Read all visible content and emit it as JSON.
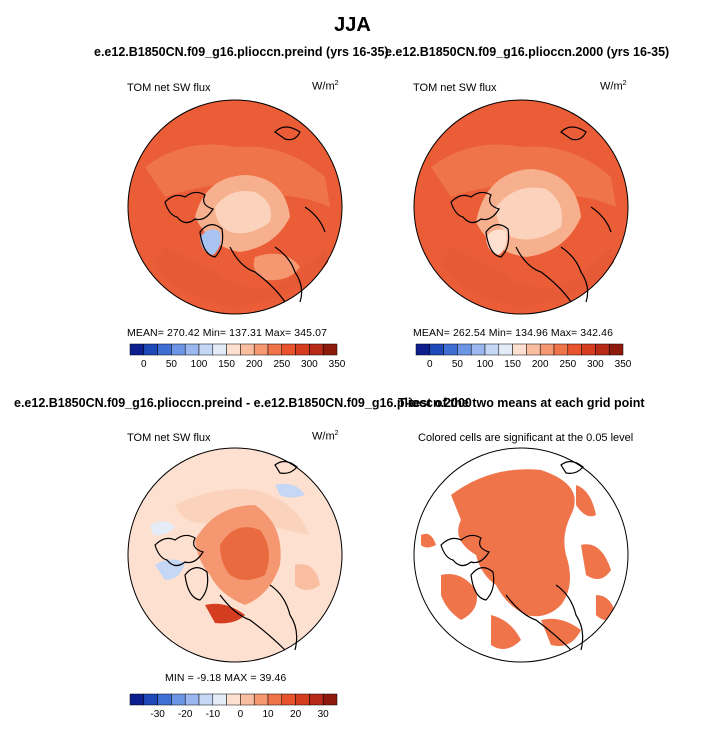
{
  "title": "JJA",
  "colors": {
    "scale": [
      "#0d1f8e",
      "#1f49b8",
      "#3f6fd4",
      "#6d95e6",
      "#9ab8ef",
      "#c4d7f5",
      "#e4ecf8",
      "#fde0d0",
      "#f9bda0",
      "#f59871",
      "#f0744a",
      "#e8532e",
      "#d53d21",
      "#b62a17",
      "#8d1a0d"
    ],
    "land_outline": "#000000",
    "significant_fill": "#f0744a"
  },
  "panels": {
    "p1": {
      "title": "e.e12.B1850CN.f09_g16.plioccn.preind (yrs 16-35)",
      "field_label": "TOM net SW flux",
      "units_base": "W/m",
      "units_exp": "2",
      "stats": "MEAN= 270.42   Min= 137.31   Max= 345.07",
      "colorbar_ticks": [
        "0",
        "50",
        "100",
        "150",
        "200",
        "250",
        "300",
        "350"
      ]
    },
    "p2": {
      "title": "e.e12.B1850CN.f09_g16.plioccn.2000 (yrs 16-35)",
      "field_label": "TOM net SW flux",
      "units_base": "W/m",
      "units_exp": "2",
      "stats": "MEAN= 262.54   Min= 134.96   Max= 342.46",
      "colorbar_ticks": [
        "0",
        "50",
        "100",
        "150",
        "200",
        "250",
        "300",
        "350"
      ]
    },
    "p3": {
      "title": "e.e12.B1850CN.f09_g16.plioccn.preind - e.e12.B1850CN.f09_g16.plioccn.2000",
      "field_label": "TOM net SW flux",
      "units_base": "W/m",
      "units_exp": "2",
      "stats": "MIN =  -9.18  MAX =   39.46",
      "colorbar_ticks": [
        "-30",
        "-20",
        "-10",
        "0",
        "10",
        "20",
        "30"
      ]
    },
    "p4": {
      "title": "T-test of the two means at each grid point",
      "subtitle": "Colored cells are significant at the 0.05 level"
    }
  },
  "chart_data": [
    {
      "type": "heatmap",
      "projection": "polar stereographic (north pole)",
      "title": "e.e12.B1850CN.f09_g16.plioccn.preind (yrs 16-35)",
      "variable": "TOM net SW flux",
      "units": "W/m2",
      "mean": 270.42,
      "min": 137.31,
      "max": 345.07,
      "colorbar_levels": [
        0,
        50,
        100,
        150,
        200,
        250,
        300,
        350
      ]
    },
    {
      "type": "heatmap",
      "projection": "polar stereographic (north pole)",
      "title": "e.e12.B1850CN.f09_g16.plioccn.2000 (yrs 16-35)",
      "variable": "TOM net SW flux",
      "units": "W/m2",
      "mean": 262.54,
      "min": 134.96,
      "max": 342.46,
      "colorbar_levels": [
        0,
        50,
        100,
        150,
        200,
        250,
        300,
        350
      ]
    },
    {
      "type": "heatmap",
      "projection": "polar stereographic (north pole)",
      "title": "e.e12.B1850CN.f09_g16.plioccn.preind - e.e12.B1850CN.f09_g16.plioccn.2000",
      "variable": "TOM net SW flux",
      "units": "W/m2",
      "min": -9.18,
      "max": 39.46,
      "colorbar_levels": [
        -30,
        -20,
        -10,
        0,
        10,
        20,
        30
      ]
    },
    {
      "type": "heatmap",
      "projection": "polar stereographic (north pole)",
      "title": "T-test of the two means at each grid point",
      "subtitle": "Colored cells are significant at the 0.05 level",
      "significance_level": 0.05
    }
  ]
}
